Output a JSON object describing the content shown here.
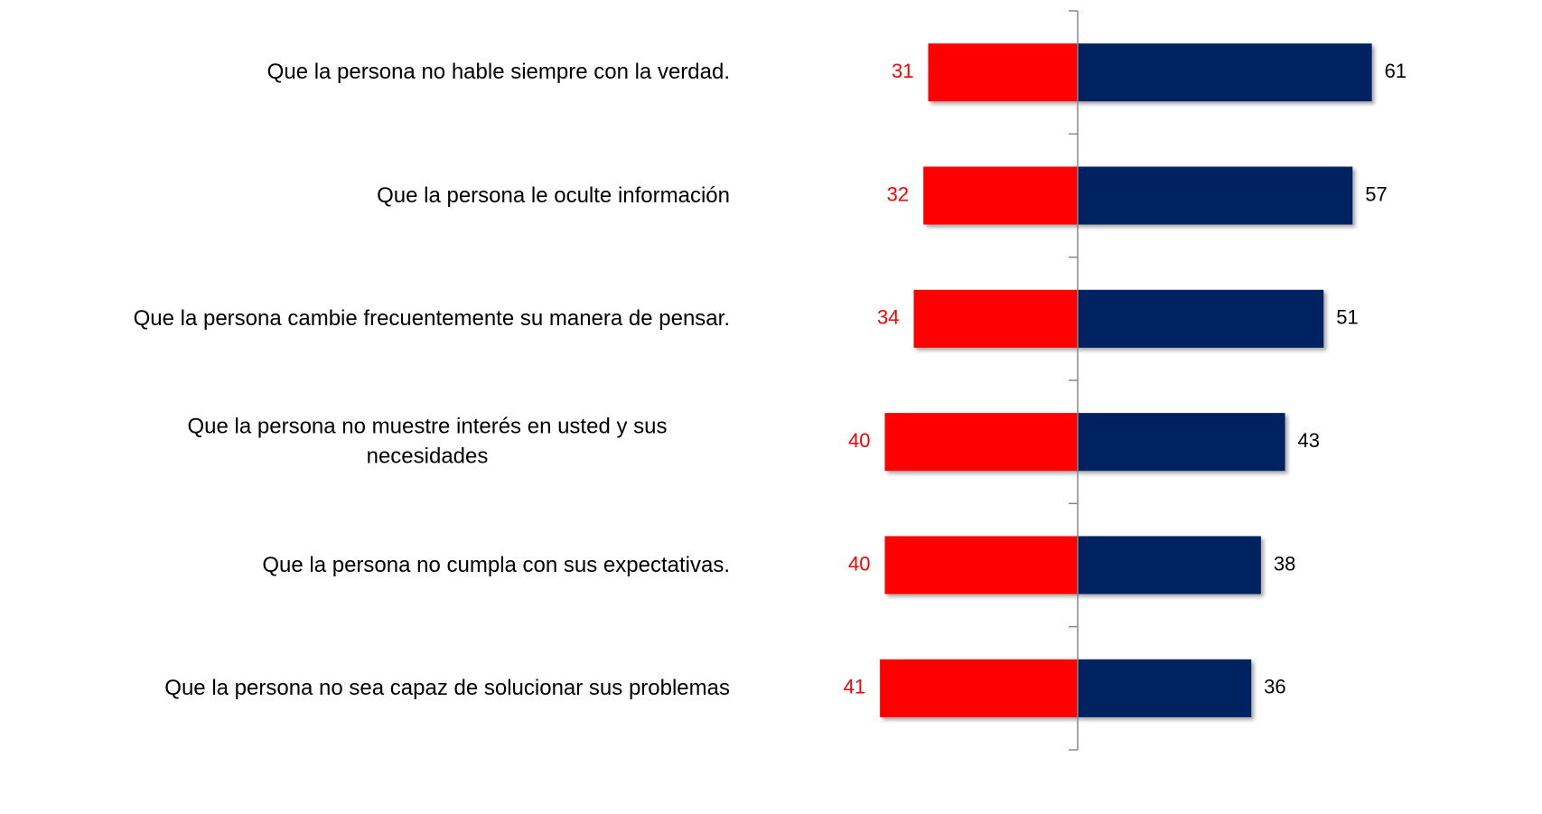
{
  "chart_data": {
    "type": "diverging-bar",
    "categories": [
      "Que la persona no hable siempre con la verdad.",
      "Que la persona le oculte información",
      "Que la persona cambie frecuentemente su manera de pensar.",
      "Que la persona no muestre interés en usted y sus necesidades",
      "Que la persona no cumpla con sus expectativas.",
      "Que la persona no sea capaz de solucionar sus problemas"
    ],
    "series": [
      {
        "color": "#ff0000",
        "side": "left",
        "values": [
          31,
          32,
          34,
          40,
          40,
          41
        ]
      },
      {
        "color": "#002060",
        "side": "right",
        "values": [
          61,
          57,
          51,
          43,
          38,
          36
        ]
      }
    ],
    "xlim": [
      -65,
      65
    ]
  }
}
